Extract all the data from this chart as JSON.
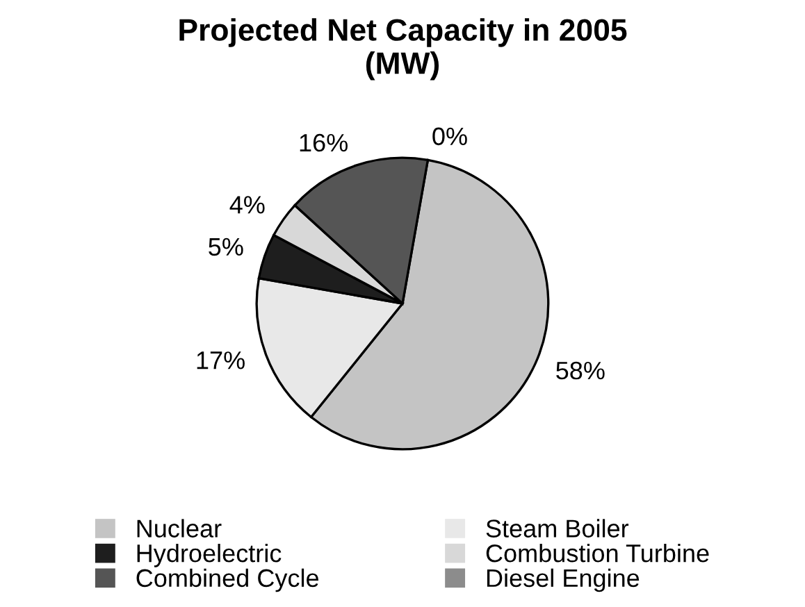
{
  "chart_data": {
    "type": "pie",
    "title": "Projected Net Capacity in 2005\n(MW)",
    "categories": [
      "Nuclear",
      "Steam Boiler",
      "Hydroelectric",
      "Combustion Turbine",
      "Combined Cycle",
      "Diesel Engine"
    ],
    "values": [
      58,
      17,
      5,
      4,
      16,
      0
    ],
    "colors": [
      "#c4c4c4",
      "#e8e8e8",
      "#1e1e1e",
      "#d8d8d8",
      "#555555",
      "#8c8c8c"
    ],
    "value_labels": [
      "58%",
      "17%",
      "5%",
      "4%",
      "16%",
      "0%"
    ],
    "legend": "bottom"
  }
}
